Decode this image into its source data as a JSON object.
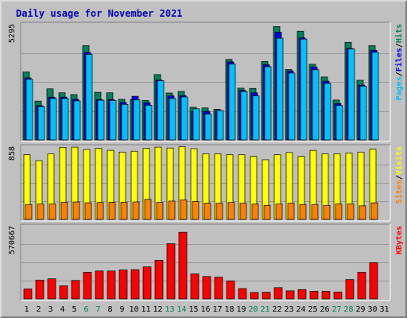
{
  "window": {
    "title": "Daily usage for November 2021"
  },
  "colors": {
    "background": "#c0c0c0",
    "title": "#0000b8",
    "hits": "#00805c",
    "files": "#0000e0",
    "pages": "#00c0ff",
    "visits": "#ffff00",
    "sites": "#ff8000",
    "kbytes": "#ff0000",
    "weekend_tick": "#00805c"
  },
  "chart_data": [
    {
      "type": "bar",
      "title": "Daily usage for November 2021",
      "ylabel_parts": [
        "Pages",
        "/",
        "Files",
        "/",
        "Hits"
      ],
      "ymax_label": "5295",
      "ylim": [
        0,
        5295
      ],
      "grid": true,
      "categories": [
        "1",
        "2",
        "3",
        "4",
        "5",
        "6",
        "7",
        "8",
        "9",
        "10",
        "11",
        "12",
        "13",
        "14",
        "15",
        "16",
        "17",
        "18",
        "19",
        "20",
        "21",
        "22",
        "23",
        "24",
        "25",
        "26",
        "27",
        "28",
        "29",
        "30"
      ],
      "series": [
        {
          "name": "Hits",
          "values": [
            3100,
            1770,
            2330,
            2150,
            2070,
            4300,
            2170,
            2150,
            1850,
            1850,
            1800,
            2980,
            2140,
            2210,
            1490,
            1460,
            1400,
            3670,
            2360,
            2350,
            3580,
            5170,
            3210,
            4960,
            3450,
            2870,
            1820,
            4450,
            2720,
            4300
          ]
        },
        {
          "name": "Files",
          "values": [
            2830,
            1560,
            1950,
            1950,
            1850,
            3990,
            1840,
            1840,
            1710,
            1990,
            1700,
            2730,
            2010,
            2020,
            1290,
            1300,
            1340,
            3560,
            2260,
            2150,
            3430,
            4910,
            3150,
            4660,
            3330,
            2680,
            1660,
            4170,
            2500,
            4090
          ]
        },
        {
          "name": "Pages",
          "values": [
            2770,
            1520,
            1890,
            1890,
            1780,
            3900,
            1810,
            1800,
            1620,
            1830,
            1580,
            2700,
            1890,
            1960,
            1420,
            1180,
            1340,
            3460,
            2210,
            2010,
            3340,
            4640,
            3050,
            4600,
            3200,
            2580,
            1570,
            4150,
            2450,
            4000
          ]
        }
      ]
    },
    {
      "type": "bar",
      "ylabel_parts": [
        "Sites",
        "/",
        "Visits"
      ],
      "ymax_label": "858",
      "ylim": [
        0,
        858
      ],
      "grid": true,
      "categories": [
        "1",
        "2",
        "3",
        "4",
        "5",
        "6",
        "7",
        "8",
        "9",
        "10",
        "11",
        "12",
        "13",
        "14",
        "15",
        "16",
        "17",
        "18",
        "19",
        "20",
        "21",
        "22",
        "23",
        "24",
        "25",
        "26",
        "27",
        "28",
        "29",
        "30"
      ],
      "series": [
        {
          "name": "Visits",
          "values": [
            760,
            690,
            770,
            845,
            848,
            820,
            835,
            810,
            790,
            800,
            835,
            848,
            838,
            852,
            830,
            770,
            770,
            760,
            760,
            740,
            700,
            760,
            785,
            740,
            810,
            770,
            770,
            780,
            790,
            825
          ]
        },
        {
          "name": "Sites",
          "values": [
            175,
            180,
            180,
            200,
            205,
            195,
            198,
            200,
            200,
            205,
            235,
            200,
            215,
            230,
            210,
            190,
            190,
            200,
            190,
            180,
            165,
            180,
            190,
            175,
            175,
            165,
            180,
            180,
            160,
            195
          ]
        }
      ]
    },
    {
      "type": "bar",
      "ylabel_parts": [
        "KBytes"
      ],
      "ymax_label": "570667",
      "ylim": [
        0,
        570667
      ],
      "grid": true,
      "categories": [
        "1",
        "2",
        "3",
        "4",
        "5",
        "6",
        "7",
        "8",
        "9",
        "10",
        "11",
        "12",
        "13",
        "14",
        "15",
        "16",
        "17",
        "18",
        "19",
        "20",
        "21",
        "22",
        "23",
        "24",
        "25",
        "26",
        "27",
        "28",
        "29",
        "30"
      ],
      "series": [
        {
          "name": "KBytes",
          "values": [
            78000,
            147000,
            157000,
            102000,
            144000,
            208000,
            218000,
            218000,
            226000,
            228000,
            250000,
            301000,
            431000,
            520000,
            195000,
            175000,
            170000,
            141000,
            81000,
            50000,
            52000,
            88000,
            63000,
            73000,
            60000,
            59000,
            54000,
            151000,
            208000,
            283000
          ]
        }
      ]
    }
  ],
  "x_axis_labels": [
    "1",
    "2",
    "3",
    "4",
    "5",
    "6",
    "7",
    "8",
    "9",
    "10",
    "11",
    "12",
    "13",
    "14",
    "15",
    "16",
    "17",
    "18",
    "19",
    "20",
    "21",
    "22",
    "23",
    "24",
    "25",
    "26",
    "27",
    "28",
    "29",
    "30",
    "31"
  ],
  "weekend_days": [
    "6",
    "7",
    "13",
    "14",
    "20",
    "21",
    "27",
    "28"
  ]
}
